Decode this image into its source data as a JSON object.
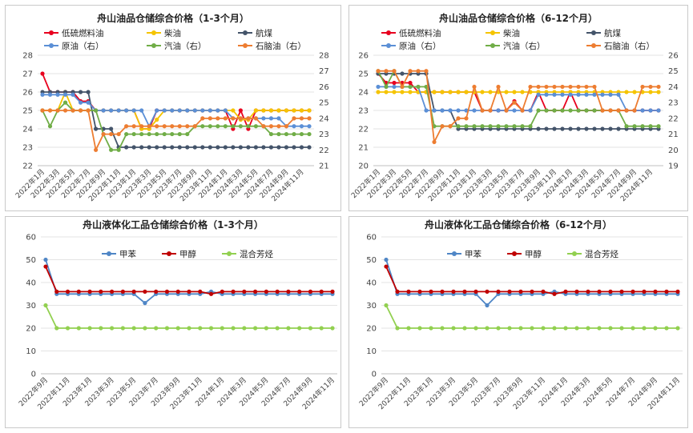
{
  "colors": {
    "low_sulfur_fuel_oil": "#e8001e",
    "diesel": "#f5c400",
    "jet_fuel": "#44546a",
    "crude_oil": "#5b8fd6",
    "gasoline": "#70ad47",
    "naphtha": "#ed7d31",
    "toluene": "#4f86c6",
    "methanol": "#c00000",
    "mixed_aromatics": "#92d050"
  },
  "chart_data": [
    {
      "id": "oil_1_3",
      "type": "line",
      "title": "舟山油品仓储综合价格（1-3个月）",
      "x": [
        "2022年1月",
        "2022年2月",
        "2022年3月",
        "2022年4月",
        "2022年5月",
        "2022年6月",
        "2022年7月",
        "2022年8月",
        "2022年9月",
        "2022年10月",
        "2022年11月",
        "2022年12月",
        "2023年1月",
        "2023年2月",
        "2023年3月",
        "2023年4月",
        "2023年5月",
        "2023年6月",
        "2023年7月",
        "2023年8月",
        "2023年9月",
        "2023年10月",
        "2023年11月",
        "2023年12月",
        "2024年1月",
        "2024年2月",
        "2024年3月",
        "2024年4月",
        "2024年5月",
        "2024年6月",
        "2024年7月",
        "2024年8月",
        "2024年9月",
        "2024年10月",
        "2024年11月",
        "2024年12月"
      ],
      "x_tick_labels": [
        "2022年1月",
        "2022年3月",
        "2022年5月",
        "2022年7月",
        "2022年9月",
        "2022年11月",
        "2023年1月",
        "2023年3月",
        "2023年5月",
        "2023年7月",
        "2023年9月",
        "2023年11月",
        "2024年1月",
        "2024年3月",
        "2024年5月",
        "2024年7月",
        "2024年9月",
        "2024年11月"
      ],
      "ylim": [
        22,
        28
      ],
      "y_ticks": [
        22,
        23,
        24,
        25,
        26,
        27,
        28
      ],
      "y2lim": [
        21,
        28
      ],
      "y2_ticks": [
        21,
        22,
        23,
        24,
        25,
        26,
        27,
        28
      ],
      "grid": true,
      "legend_position": "top",
      "series": [
        {
          "name": "低硫燃料油",
          "color_key": "low_sulfur_fuel_oil",
          "axis": "left",
          "values": [
            27,
            26,
            26,
            26,
            26,
            25.5,
            25.5,
            25,
            25,
            25,
            25,
            25,
            25,
            24,
            24,
            25,
            25,
            25,
            25,
            25,
            25,
            25,
            25,
            25,
            25,
            24,
            25,
            24,
            25,
            25,
            25,
            25,
            25,
            25,
            25,
            25
          ]
        },
        {
          "name": "柴油",
          "color_key": "diesel",
          "axis": "left",
          "values": [
            25,
            25,
            25,
            26,
            25,
            25,
            25,
            25,
            25,
            25,
            25,
            25,
            25,
            24,
            24,
            24.5,
            25,
            25,
            25,
            25,
            25,
            25,
            25,
            25,
            25,
            25,
            24.5,
            24.5,
            25,
            25,
            25,
            25,
            25,
            25,
            25,
            25
          ]
        },
        {
          "name": "航煤",
          "color_key": "jet_fuel",
          "axis": "left",
          "values": [
            26,
            26,
            26,
            26,
            26,
            26,
            26,
            24,
            24,
            24,
            23,
            23,
            23,
            23,
            23,
            23,
            23,
            23,
            23,
            23,
            23,
            23,
            23,
            23,
            23,
            23,
            23,
            23,
            23,
            23,
            23,
            23,
            23,
            23,
            23,
            23
          ]
        },
        {
          "name": "原油（右）",
          "color_key": "crude_oil",
          "axis": "right",
          "values": [
            25.5,
            25.5,
            25.5,
            25.5,
            25.5,
            25,
            25,
            24.5,
            24.5,
            24.5,
            24.5,
            24.5,
            24.5,
            24.5,
            23.5,
            24.5,
            24.5,
            24.5,
            24.5,
            24.5,
            24.5,
            24.5,
            24.5,
            24.5,
            24.5,
            24,
            24,
            24,
            24,
            24,
            24,
            24,
            23.5,
            23.5,
            23.5,
            23.5
          ]
        },
        {
          "name": "汽油（右）",
          "color_key": "gasoline",
          "axis": "right",
          "values": [
            24.5,
            23.5,
            24.5,
            25,
            24.5,
            24.5,
            24.5,
            24.5,
            23,
            22,
            22,
            23,
            23,
            23,
            23,
            23,
            23,
            23,
            23,
            23,
            23.5,
            23.5,
            23.5,
            23.5,
            23.5,
            23.5,
            23.5,
            23.5,
            23.5,
            23.5,
            23,
            23,
            23,
            23,
            23,
            23
          ]
        },
        {
          "name": "石脑油（右）",
          "color_key": "naphtha",
          "axis": "right",
          "values": [
            24.5,
            24.5,
            24.5,
            24.5,
            24.5,
            24.5,
            24.5,
            22,
            23,
            23,
            23,
            23.5,
            23.5,
            23.5,
            23.5,
            23.5,
            23.5,
            23.5,
            23.5,
            23.5,
            23.5,
            24,
            24,
            24,
            24,
            24,
            24,
            24,
            24,
            23.5,
            23.5,
            23.5,
            23.5,
            24,
            24,
            24
          ]
        }
      ]
    },
    {
      "id": "oil_6_12",
      "type": "line",
      "title": "舟山油品仓储综合价格（6-12个月）",
      "x": [
        "2022年1月",
        "2022年2月",
        "2022年3月",
        "2022年4月",
        "2022年5月",
        "2022年6月",
        "2022年7月",
        "2022年8月",
        "2022年9月",
        "2022年10月",
        "2022年11月",
        "2022年12月",
        "2023年1月",
        "2023年2月",
        "2023年3月",
        "2023年4月",
        "2023年5月",
        "2023年6月",
        "2023年7月",
        "2023年8月",
        "2023年9月",
        "2023年10月",
        "2023年11月",
        "2023年12月",
        "2024年1月",
        "2024年2月",
        "2024年3月",
        "2024年4月",
        "2024年5月",
        "2024年6月",
        "2024年7月",
        "2024年8月",
        "2024年9月",
        "2024年10月",
        "2024年11月",
        "2024年12月"
      ],
      "x_tick_labels": [
        "2022年1月",
        "2022年3月",
        "2022年5月",
        "2022年7月",
        "2022年9月",
        "2022年11月",
        "2023年1月",
        "2023年3月",
        "2023年5月",
        "2023年7月",
        "2023年9月",
        "2023年11月",
        "2024年1月",
        "2024年3月",
        "2024年5月",
        "2024年7月",
        "2024年9月",
        "2024年11月"
      ],
      "ylim": [
        20,
        26
      ],
      "y_ticks": [
        20,
        21,
        22,
        23,
        24,
        25,
        26
      ],
      "y2lim": [
        19,
        26
      ],
      "y2_ticks": [
        19,
        20,
        21,
        22,
        23,
        24,
        25,
        26
      ],
      "grid": true,
      "legend_position": "top",
      "series": [
        {
          "name": "低硫燃料油",
          "color_key": "low_sulfur_fuel_oil",
          "axis": "left",
          "values": [
            25,
            24.5,
            24.5,
            24.5,
            24.5,
            24,
            24,
            24,
            24,
            24,
            24,
            24,
            24,
            23,
            23,
            23,
            23,
            23.5,
            23,
            23,
            24,
            23,
            23,
            23,
            24,
            23,
            23,
            23,
            23,
            23,
            23,
            23,
            23,
            23,
            23,
            23
          ]
        },
        {
          "name": "柴油",
          "color_key": "diesel",
          "axis": "left",
          "values": [
            24,
            24,
            24,
            24,
            24,
            24,
            24,
            24,
            24,
            24,
            24,
            24,
            24,
            24,
            24,
            24,
            24,
            24,
            24,
            24,
            24,
            24,
            24,
            24,
            24,
            24,
            24,
            24,
            24,
            24,
            24,
            24,
            24,
            24,
            24,
            24
          ]
        },
        {
          "name": "航煤",
          "color_key": "jet_fuel",
          "axis": "left",
          "values": [
            25,
            25,
            25,
            25,
            25,
            25,
            25,
            23,
            23,
            23,
            22,
            22,
            22,
            22,
            22,
            22,
            22,
            22,
            22,
            22,
            22,
            22,
            22,
            22,
            22,
            22,
            22,
            22,
            22,
            22,
            22,
            22,
            22,
            22,
            22,
            22
          ]
        },
        {
          "name": "原油（右）",
          "color_key": "crude_oil",
          "axis": "right",
          "values": [
            24,
            24,
            24,
            24,
            24,
            24,
            22.5,
            22.5,
            22.5,
            22.5,
            22.5,
            22.5,
            22.5,
            22.5,
            22.5,
            22.5,
            22.5,
            22.5,
            22.5,
            22.5,
            23.5,
            23.5,
            23.5,
            23.5,
            23.5,
            23.5,
            23.5,
            23.5,
            23.5,
            23.5,
            23.5,
            22.5,
            22.5,
            22.5,
            22.5,
            22.5
          ]
        },
        {
          "name": "汽油（右）",
          "color_key": "gasoline",
          "axis": "right",
          "values": [
            25,
            24,
            25,
            24,
            24,
            24,
            24,
            21.5,
            21.5,
            21.5,
            21.5,
            21.5,
            21.5,
            21.5,
            21.5,
            21.5,
            21.5,
            21.5,
            21.5,
            21.5,
            22.5,
            22.5,
            22.5,
            22.5,
            22.5,
            22.5,
            22.5,
            22.5,
            22.5,
            22.5,
            22.5,
            21.5,
            21.5,
            21.5,
            21.5,
            21.5
          ]
        },
        {
          "name": "石脑油（右）",
          "color_key": "naphtha",
          "axis": "right",
          "values": [
            25,
            25,
            25,
            24,
            25,
            25,
            25,
            20.5,
            21.5,
            21.5,
            22,
            22,
            24,
            22.5,
            22.5,
            24,
            22.5,
            23,
            22.5,
            24,
            24,
            24,
            24,
            24,
            24,
            24,
            24,
            24,
            22.5,
            22.5,
            22.5,
            22.5,
            22.5,
            24,
            24,
            24
          ]
        }
      ]
    },
    {
      "id": "chem_1_3",
      "type": "line",
      "title": "舟山液体化工品仓储综合价格（1-3个月）",
      "x": [
        "2022年9月",
        "2022年10月",
        "2022年11月",
        "2022年12月",
        "2023年1月",
        "2023年2月",
        "2023年3月",
        "2023年4月",
        "2023年5月",
        "2023年6月",
        "2023年7月",
        "2023年8月",
        "2023年9月",
        "2023年10月",
        "2023年11月",
        "2023年12月",
        "2024年1月",
        "2024年2月",
        "2024年3月",
        "2024年4月",
        "2024年5月",
        "2024年6月",
        "2024年7月",
        "2024年8月",
        "2024年9月",
        "2024年10月",
        "2024年11月"
      ],
      "x_tick_labels": [
        "2022年9月",
        "2022年11月",
        "2023年1月",
        "2023年3月",
        "2023年5月",
        "2023年7月",
        "2023年9月",
        "2023年11月",
        "2024年1月",
        "2024年3月",
        "2024年5月",
        "2024年7月",
        "2024年9月",
        "2024年11月"
      ],
      "ylim": [
        0,
        60
      ],
      "y_ticks": [
        0,
        10,
        20,
        30,
        40,
        50,
        60
      ],
      "grid": true,
      "legend_position": "top",
      "series": [
        {
          "name": "甲苯",
          "color_key": "toluene",
          "axis": "left",
          "values": [
            50,
            35,
            35,
            35,
            35,
            35,
            35,
            35,
            35,
            31,
            35,
            35,
            35,
            35,
            35,
            36,
            35,
            35,
            35,
            35,
            35,
            35,
            35,
            35,
            35,
            35,
            35
          ]
        },
        {
          "name": "甲醇",
          "color_key": "methanol",
          "axis": "left",
          "values": [
            47,
            36,
            36,
            36,
            36,
            36,
            36,
            36,
            36,
            36,
            36,
            36,
            36,
            36,
            36,
            35,
            36,
            36,
            36,
            36,
            36,
            36,
            36,
            36,
            36,
            36,
            36
          ]
        },
        {
          "name": "混合芳烃",
          "color_key": "mixed_aromatics",
          "axis": "left",
          "values": [
            30,
            20,
            20,
            20,
            20,
            20,
            20,
            20,
            20,
            20,
            20,
            20,
            20,
            20,
            20,
            20,
            20,
            20,
            20,
            20,
            20,
            20,
            20,
            20,
            20,
            20,
            20
          ]
        }
      ]
    },
    {
      "id": "chem_6_12",
      "type": "line",
      "title": "舟山液体化工品仓储综合价格（6-12个月）",
      "x": [
        "2022年9月",
        "2022年10月",
        "2022年11月",
        "2022年12月",
        "2023年1月",
        "2023年2月",
        "2023年3月",
        "2023年4月",
        "2023年5月",
        "2023年6月",
        "2023年7月",
        "2023年8月",
        "2023年9月",
        "2023年10月",
        "2023年11月",
        "2023年12月",
        "2024年1月",
        "2024年2月",
        "2024年3月",
        "2024年4月",
        "2024年5月",
        "2024年6月",
        "2024年7月",
        "2024年8月",
        "2024年9月",
        "2024年10月",
        "2024年11月"
      ],
      "x_tick_labels": [
        "2022年9月",
        "2022年11月",
        "2023年1月",
        "2023年3月",
        "2023年5月",
        "2023年7月",
        "2023年9月",
        "2023年11月",
        "2024年1月",
        "2024年3月",
        "2024年5月",
        "2024年7月",
        "2024年9月",
        "2024年11月"
      ],
      "ylim": [
        0,
        60
      ],
      "y_ticks": [
        0,
        10,
        20,
        30,
        40,
        50,
        60
      ],
      "grid": true,
      "legend_position": "top",
      "series": [
        {
          "name": "甲苯",
          "color_key": "toluene",
          "axis": "left",
          "values": [
            50,
            35,
            35,
            35,
            35,
            35,
            35,
            35,
            35,
            30,
            35,
            35,
            35,
            35,
            35,
            36,
            35,
            35,
            35,
            35,
            35,
            35,
            35,
            35,
            35,
            35,
            35
          ]
        },
        {
          "name": "甲醇",
          "color_key": "methanol",
          "axis": "left",
          "values": [
            47,
            36,
            36,
            36,
            36,
            36,
            36,
            36,
            36,
            36,
            36,
            36,
            36,
            36,
            36,
            35,
            36,
            36,
            36,
            36,
            36,
            36,
            36,
            36,
            36,
            36,
            36
          ]
        },
        {
          "name": "混合芳烃",
          "color_key": "mixed_aromatics",
          "axis": "left",
          "values": [
            30,
            20,
            20,
            20,
            20,
            20,
            20,
            20,
            20,
            20,
            20,
            20,
            20,
            20,
            20,
            20,
            20,
            20,
            20,
            20,
            20,
            20,
            20,
            20,
            20,
            20,
            20
          ]
        }
      ]
    }
  ]
}
